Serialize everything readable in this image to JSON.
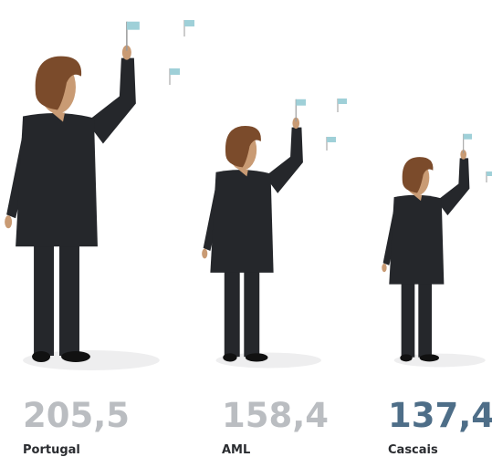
{
  "chart_data": {
    "type": "pictogram",
    "categories": [
      "Portugal",
      "AML",
      "Cascais"
    ],
    "values": [
      205.5,
      158.4,
      137.4
    ],
    "value_labels": [
      "205,5",
      "158,4",
      "137,4"
    ],
    "colors": [
      "#babdc1",
      "#babdc1",
      "#4e6e88"
    ]
  }
}
